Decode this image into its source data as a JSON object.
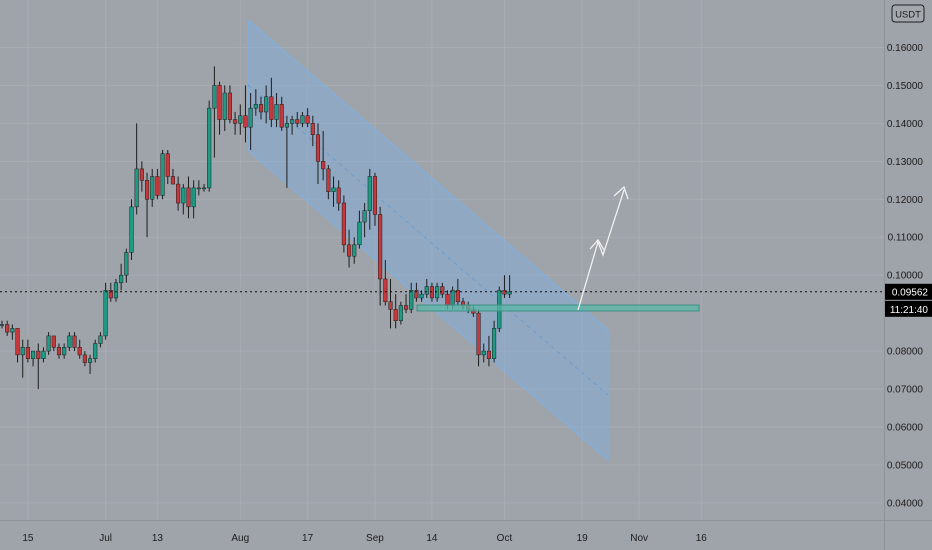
{
  "chart_data": {
    "type": "candlestick",
    "title": "",
    "currency_badge": "USDT",
    "y_ticks": [
      "0.16000",
      "0.15000",
      "0.14000",
      "0.13000",
      "0.12000",
      "0.11000",
      "0.10000",
      "0.08000",
      "0.07000",
      "0.06000",
      "0.05000",
      "0.04000"
    ],
    "y_range": [
      0.0355,
      0.1725
    ],
    "x_ticks": [
      {
        "label": "15",
        "index": 5
      },
      {
        "label": "Jul",
        "index": 20
      },
      {
        "label": "13",
        "index": 30
      },
      {
        "label": "Aug",
        "index": 46
      },
      {
        "label": "17",
        "index": 59
      },
      {
        "label": "Sep",
        "index": 72
      },
      {
        "label": "14",
        "index": 83
      },
      {
        "label": "Oct",
        "index": 97
      },
      {
        "label": "19",
        "index": 112
      },
      {
        "label": "Nov",
        "index": 123
      },
      {
        "label": "16",
        "index": 135
      }
    ],
    "last_price": "0.09562",
    "last_price_value": 0.09562,
    "countdown": "11:21:40",
    "colors": {
      "up": "#1e9b83",
      "down": "#c5393c",
      "channel": "#7fb0e0",
      "support": "#5ab8a8",
      "arrow": "#f0f0f0",
      "label_bg": "#000000"
    },
    "candles": [
      [
        0.087,
        0.088,
        0.086,
        0.087
      ],
      [
        0.087,
        0.088,
        0.084,
        0.085
      ],
      [
        0.085,
        0.087,
        0.083,
        0.086
      ],
      [
        0.086,
        0.086,
        0.077,
        0.079
      ],
      [
        0.079,
        0.083,
        0.073,
        0.081
      ],
      [
        0.081,
        0.083,
        0.077,
        0.078
      ],
      [
        0.078,
        0.08,
        0.076,
        0.08
      ],
      [
        0.08,
        0.082,
        0.07,
        0.078
      ],
      [
        0.078,
        0.081,
        0.077,
        0.08
      ],
      [
        0.08,
        0.085,
        0.079,
        0.084
      ],
      [
        0.084,
        0.084,
        0.08,
        0.081
      ],
      [
        0.081,
        0.082,
        0.078,
        0.079
      ],
      [
        0.079,
        0.082,
        0.078,
        0.081
      ],
      [
        0.081,
        0.085,
        0.08,
        0.084
      ],
      [
        0.084,
        0.085,
        0.08,
        0.081
      ],
      [
        0.081,
        0.083,
        0.078,
        0.079
      ],
      [
        0.079,
        0.08,
        0.076,
        0.077
      ],
      [
        0.077,
        0.079,
        0.074,
        0.078
      ],
      [
        0.078,
        0.083,
        0.077,
        0.082
      ],
      [
        0.082,
        0.085,
        0.081,
        0.084
      ],
      [
        0.084,
        0.098,
        0.083,
        0.096
      ],
      [
        0.096,
        0.098,
        0.093,
        0.094
      ],
      [
        0.094,
        0.099,
        0.093,
        0.098
      ],
      [
        0.098,
        0.103,
        0.096,
        0.1
      ],
      [
        0.1,
        0.107,
        0.098,
        0.106
      ],
      [
        0.106,
        0.12,
        0.104,
        0.118
      ],
      [
        0.118,
        0.14,
        0.116,
        0.128
      ],
      [
        0.128,
        0.13,
        0.122,
        0.125
      ],
      [
        0.125,
        0.127,
        0.11,
        0.12
      ],
      [
        0.12,
        0.128,
        0.118,
        0.126
      ],
      [
        0.126,
        0.128,
        0.12,
        0.121
      ],
      [
        0.121,
        0.133,
        0.12,
        0.132
      ],
      [
        0.132,
        0.133,
        0.124,
        0.126
      ],
      [
        0.126,
        0.128,
        0.124,
        0.124
      ],
      [
        0.124,
        0.126,
        0.117,
        0.119
      ],
      [
        0.119,
        0.124,
        0.116,
        0.123
      ],
      [
        0.123,
        0.126,
        0.115,
        0.118
      ],
      [
        0.118,
        0.125,
        0.115,
        0.123
      ],
      [
        0.123,
        0.125,
        0.121,
        0.123
      ],
      [
        0.123,
        0.124,
        0.122,
        0.123
      ],
      [
        0.123,
        0.146,
        0.122,
        0.144
      ],
      [
        0.144,
        0.155,
        0.131,
        0.15
      ],
      [
        0.15,
        0.151,
        0.137,
        0.141
      ],
      [
        0.141,
        0.15,
        0.138,
        0.148
      ],
      [
        0.148,
        0.15,
        0.14,
        0.141
      ],
      [
        0.141,
        0.143,
        0.137,
        0.14
      ],
      [
        0.14,
        0.145,
        0.137,
        0.142
      ],
      [
        0.142,
        0.15,
        0.135,
        0.139
      ],
      [
        0.139,
        0.148,
        0.133,
        0.144
      ],
      [
        0.144,
        0.149,
        0.142,
        0.145
      ],
      [
        0.145,
        0.147,
        0.141,
        0.143
      ],
      [
        0.143,
        0.15,
        0.14,
        0.147
      ],
      [
        0.147,
        0.152,
        0.139,
        0.141
      ],
      [
        0.141,
        0.148,
        0.139,
        0.145
      ],
      [
        0.145,
        0.147,
        0.138,
        0.139
      ],
      [
        0.139,
        0.142,
        0.123,
        0.14
      ],
      [
        0.14,
        0.142,
        0.137,
        0.141
      ],
      [
        0.141,
        0.143,
        0.139,
        0.14
      ],
      [
        0.14,
        0.143,
        0.139,
        0.142
      ],
      [
        0.142,
        0.144,
        0.139,
        0.14
      ],
      [
        0.14,
        0.142,
        0.134,
        0.137
      ],
      [
        0.137,
        0.14,
        0.124,
        0.13
      ],
      [
        0.13,
        0.138,
        0.125,
        0.128
      ],
      [
        0.128,
        0.129,
        0.12,
        0.122
      ],
      [
        0.122,
        0.126,
        0.118,
        0.123
      ],
      [
        0.123,
        0.125,
        0.117,
        0.119
      ],
      [
        0.119,
        0.121,
        0.106,
        0.108
      ],
      [
        0.108,
        0.112,
        0.102,
        0.105
      ],
      [
        0.105,
        0.11,
        0.103,
        0.108
      ],
      [
        0.108,
        0.117,
        0.107,
        0.114
      ],
      [
        0.114,
        0.119,
        0.11,
        0.117
      ],
      [
        0.117,
        0.128,
        0.112,
        0.126
      ],
      [
        0.126,
        0.127,
        0.113,
        0.116
      ],
      [
        0.116,
        0.118,
        0.092,
        0.099
      ],
      [
        0.099,
        0.104,
        0.092,
        0.093
      ],
      [
        0.093,
        0.099,
        0.086,
        0.091
      ],
      [
        0.091,
        0.095,
        0.086,
        0.088
      ],
      [
        0.088,
        0.093,
        0.087,
        0.092
      ],
      [
        0.092,
        0.095,
        0.09,
        0.091
      ],
      [
        0.091,
        0.098,
        0.09,
        0.096
      ],
      [
        0.096,
        0.098,
        0.093,
        0.094
      ],
      [
        0.094,
        0.096,
        0.093,
        0.095
      ],
      [
        0.095,
        0.099,
        0.094,
        0.097
      ],
      [
        0.097,
        0.098,
        0.093,
        0.094
      ],
      [
        0.094,
        0.098,
        0.093,
        0.097
      ],
      [
        0.097,
        0.098,
        0.094,
        0.095
      ],
      [
        0.095,
        0.096,
        0.091,
        0.092
      ],
      [
        0.092,
        0.097,
        0.091,
        0.096
      ],
      [
        0.096,
        0.099,
        0.092,
        0.093
      ],
      [
        0.093,
        0.094,
        0.091,
        0.092
      ],
      [
        0.092,
        0.093,
        0.09,
        0.091
      ],
      [
        0.091,
        0.092,
        0.089,
        0.09
      ],
      [
        0.09,
        0.091,
        0.076,
        0.079
      ],
      [
        0.079,
        0.082,
        0.077,
        0.08
      ],
      [
        0.08,
        0.084,
        0.076,
        0.078
      ],
      [
        0.078,
        0.088,
        0.077,
        0.086
      ],
      [
        0.086,
        0.097,
        0.085,
        0.096
      ],
      [
        0.096,
        0.1,
        0.094,
        0.095
      ],
      [
        0.095,
        0.1,
        0.094,
        0.0956
      ]
    ]
  }
}
